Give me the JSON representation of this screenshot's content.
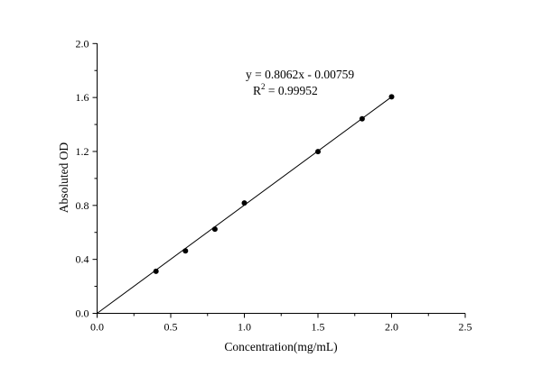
{
  "chart_data": {
    "type": "scatter",
    "title": "",
    "xlabel": "Concentration(mg/mL)",
    "ylabel": "Absoluted OD",
    "xlim": [
      0,
      2.5
    ],
    "ylim": [
      0,
      2.0
    ],
    "xticks": [
      "0.0",
      "0.5",
      "1.0",
      "1.5",
      "2.0",
      "2.5"
    ],
    "yticks": [
      "0.0",
      "0.4",
      "0.8",
      "1.2",
      "1.6",
      "2.0"
    ],
    "grid": false,
    "points": [
      {
        "x": 0.4,
        "y": 0.312
      },
      {
        "x": 0.6,
        "y": 0.463
      },
      {
        "x": 0.8,
        "y": 0.624
      },
      {
        "x": 1.0,
        "y": 0.818
      },
      {
        "x": 1.5,
        "y": 1.199
      },
      {
        "x": 1.8,
        "y": 1.442
      },
      {
        "x": 2.0,
        "y": 1.605
      }
    ],
    "fit": {
      "slope": 0.8062,
      "intercept": -0.00759,
      "x_range": [
        0,
        2.0
      ]
    },
    "annotations": {
      "equation": "y = 0.8062x - 0.00759",
      "r2_prefix": "R",
      "r2_sup": "2",
      "r2_value": " = 0.99952"
    },
    "colors": {
      "marker": "#000000",
      "line": "#000000"
    }
  }
}
